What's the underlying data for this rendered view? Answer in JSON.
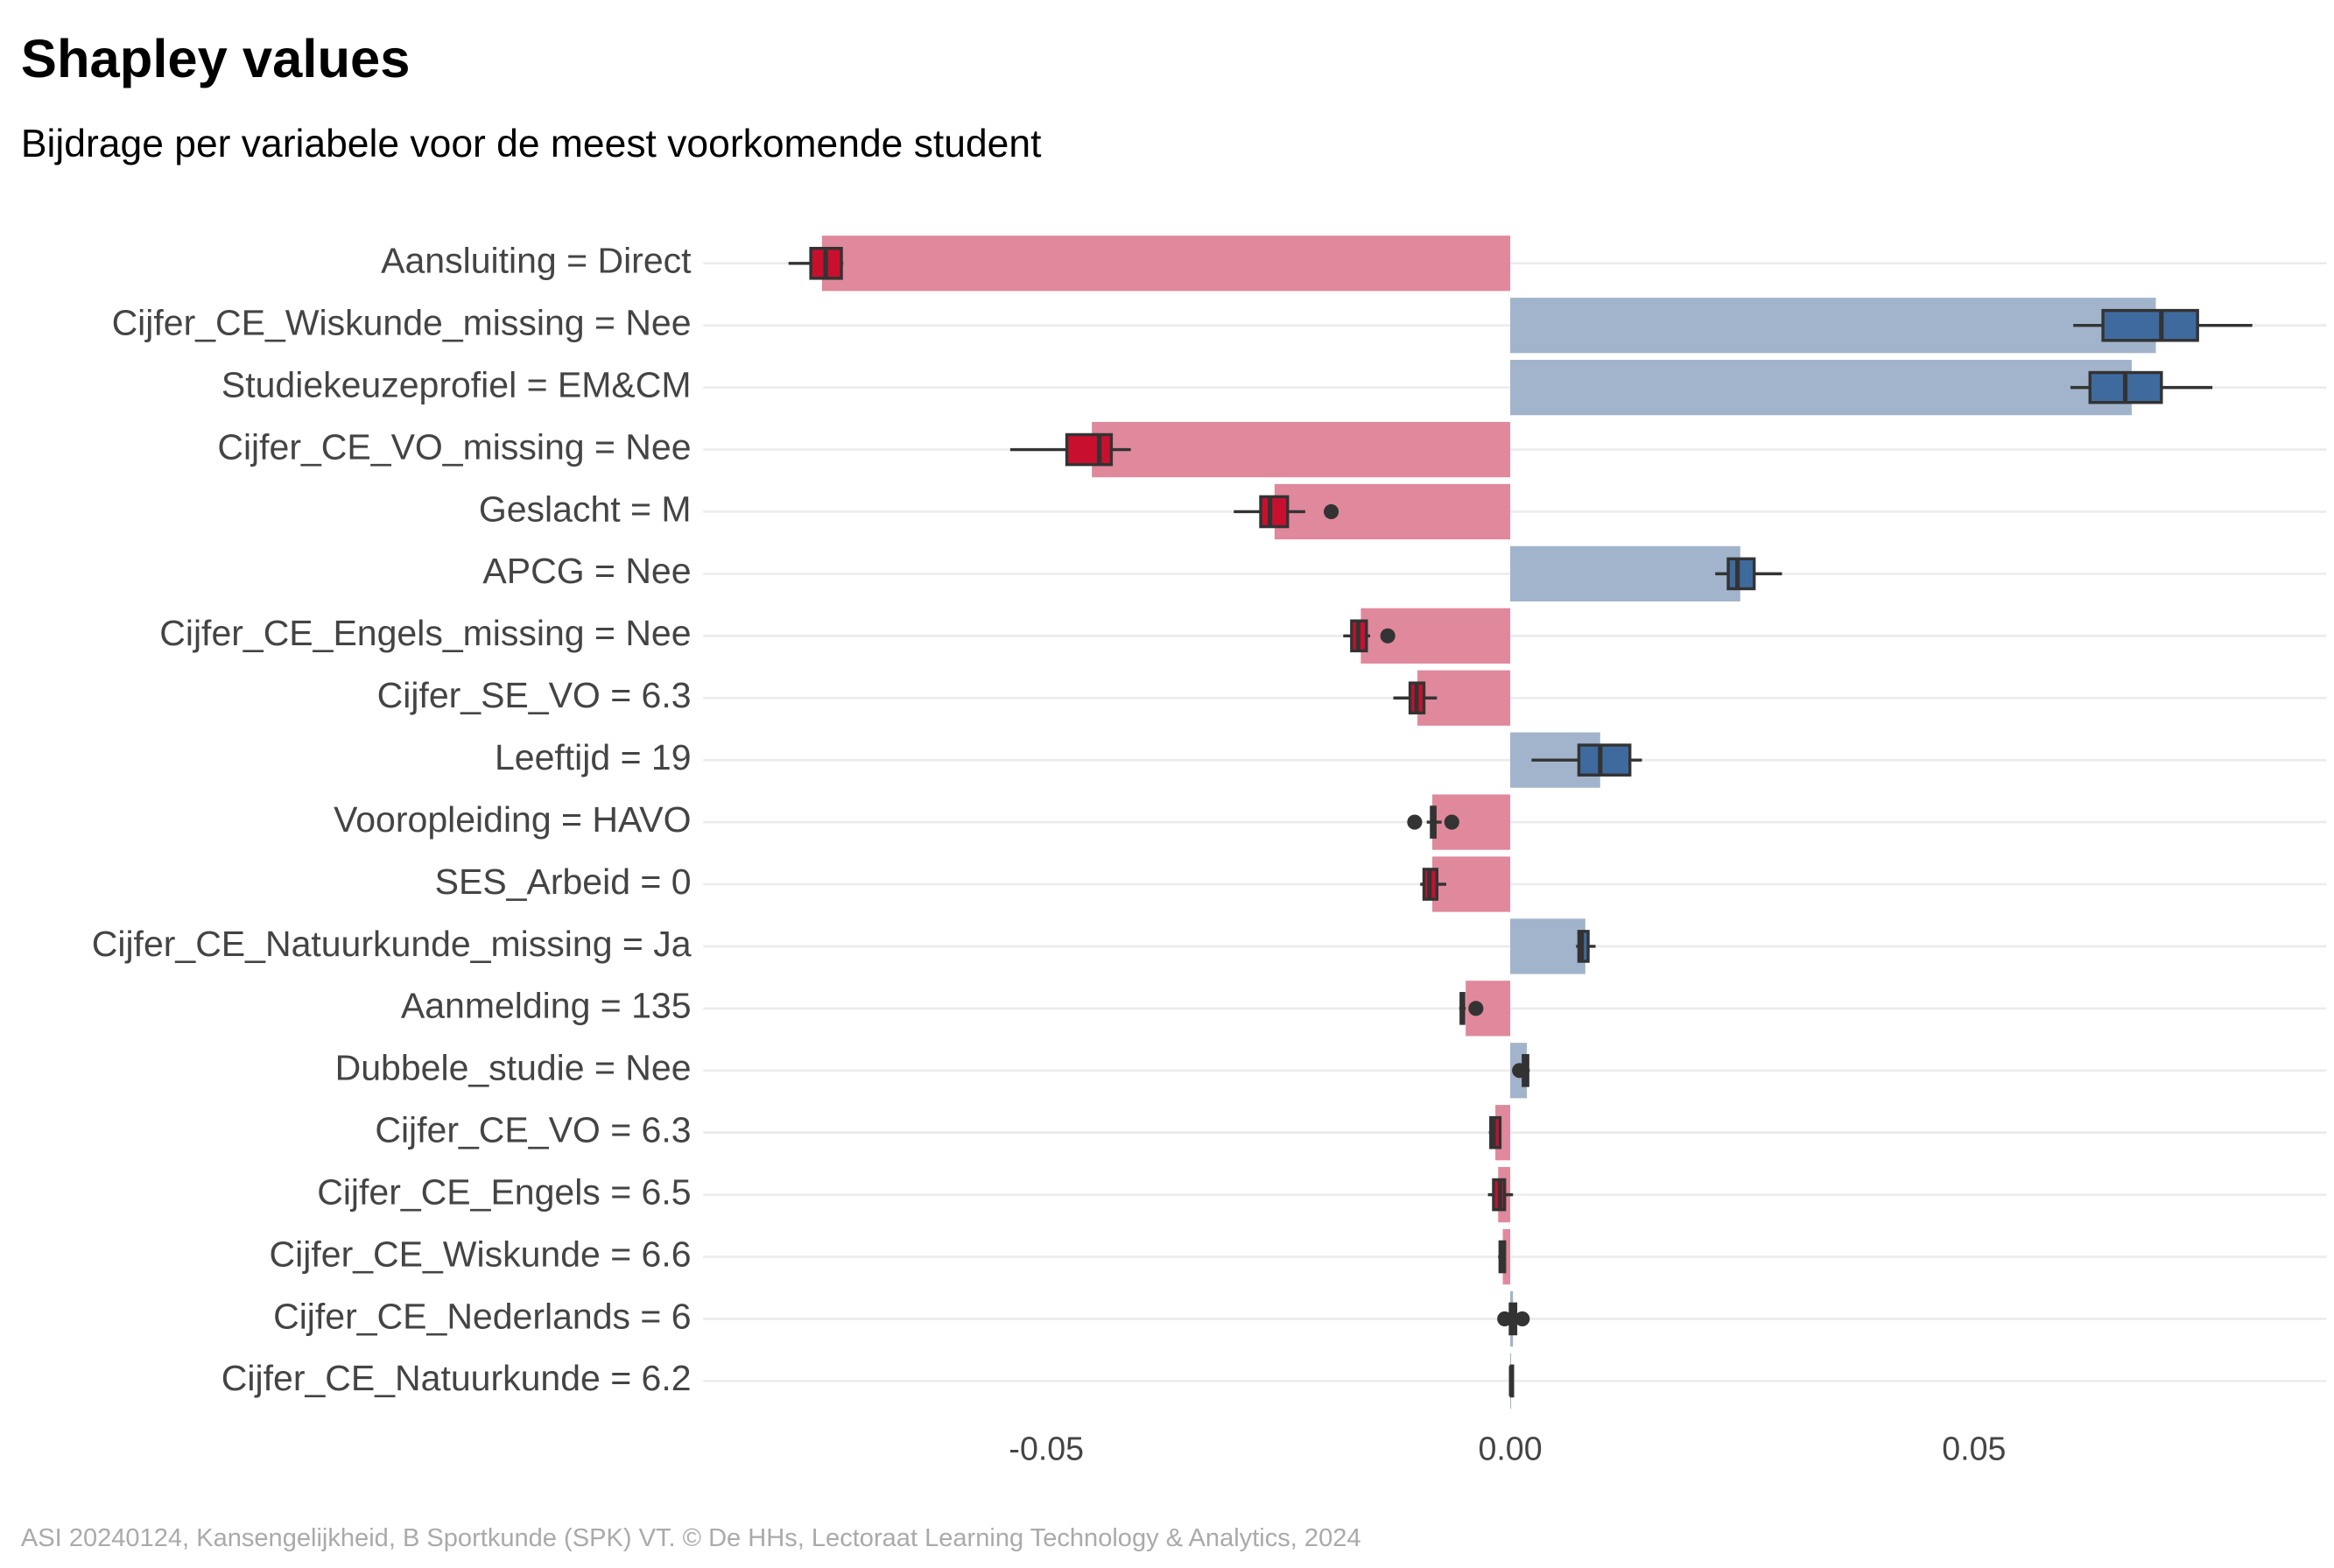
{
  "chart_data": {
    "type": "bar-box",
    "orientation": "horizontal",
    "title": "Shapley values",
    "subtitle": "Bijdrage per variabele voor de meest voorkomende student",
    "caption": "ASI 20240124, Kansengelijkheid, B Sportkunde (SPK) VT. © De HHs, Lectoraat Learning Technology & Analytics, 2024",
    "categories": [
      "Aansluiting = Direct",
      "Cijfer_CE_Wiskunde_missing = Nee",
      "Studiekeuzeprofiel = EM&CM",
      "Cijfer_CE_VO_missing = Nee",
      "Geslacht = M",
      "APCG = Nee",
      "Cijfer_CE_Engels_missing = Nee",
      "Cijfer_SE_VO = 6.3",
      "Leeftijd = 19",
      "Vooropleiding = HAVO",
      "SES_Arbeid = 0",
      "Cijfer_CE_Natuurkunde_missing = Ja",
      "Aanmelding = 135",
      "Dubbele_studie = Nee",
      "Cijfer_CE_VO = 6.3",
      "Cijfer_CE_Engels = 6.5",
      "Cijfer_CE_Wiskunde = 6.6",
      "Cijfer_CE_Nederlands = 6",
      "Cijfer_CE_Natuurkunde = 6.2"
    ],
    "values": [
      -0.0742,
      0.0696,
      0.067,
      -0.0451,
      -0.0254,
      0.0248,
      -0.0161,
      -0.01,
      0.0097,
      -0.0084,
      -0.0084,
      0.0081,
      -0.0048,
      0.0018,
      -0.0016,
      -0.0013,
      -0.0008,
      0.0003,
      0.0001
    ],
    "boxes": [
      {
        "whisker_low": -0.0778,
        "q1": -0.0754,
        "median": -0.0738,
        "q3": -0.0721,
        "whisker_high": -0.0719
      },
      {
        "whisker_low": 0.0607,
        "q1": 0.0639,
        "median": 0.0702,
        "q3": 0.0741,
        "whisker_high": 0.08
      },
      {
        "whisker_low": 0.0604,
        "q1": 0.0625,
        "median": 0.0663,
        "q3": 0.0702,
        "whisker_high": 0.0757
      },
      {
        "whisker_low": -0.0539,
        "q1": -0.0478,
        "median": -0.0443,
        "q3": -0.043,
        "whisker_high": -0.0409
      },
      {
        "whisker_low": -0.0298,
        "q1": -0.0269,
        "median": -0.0259,
        "q3": -0.024,
        "whisker_high": -0.0221,
        "outliers": [
          -0.0193
        ]
      },
      {
        "whisker_low": 0.0221,
        "q1": 0.0235,
        "median": 0.0245,
        "q3": 0.0263,
        "whisker_high": 0.0293
      },
      {
        "whisker_low": -0.018,
        "q1": -0.0171,
        "median": -0.0164,
        "q3": -0.0155,
        "whisker_high": -0.0151,
        "outliers": [
          -0.0132
        ]
      },
      {
        "whisker_low": -0.0126,
        "q1": -0.0108,
        "median": -0.0101,
        "q3": -0.0093,
        "whisker_high": -0.0079
      },
      {
        "whisker_low": 0.0023,
        "q1": 0.0074,
        "median": 0.0097,
        "q3": 0.0129,
        "whisker_high": 0.0142
      },
      {
        "whisker_low": -0.009,
        "q1": -0.0085,
        "median": -0.0084,
        "q3": -0.0081,
        "whisker_high": -0.0074,
        "outliers": [
          -0.0103,
          -0.0063
        ]
      },
      {
        "whisker_low": -0.0097,
        "q1": -0.0093,
        "median": -0.0087,
        "q3": -0.0079,
        "whisker_high": -0.0069
      },
      {
        "whisker_low": 0.0071,
        "q1": 0.0074,
        "median": 0.0077,
        "q3": 0.0084,
        "whisker_high": 0.0092
      },
      {
        "whisker_low": -0.0055,
        "q1": -0.0053,
        "median": -0.0052,
        "q3": -0.005,
        "whisker_high": -0.0048,
        "outliers": [
          -0.0037
        ]
      },
      {
        "whisker_low": 0.0013,
        "q1": 0.0014,
        "median": 0.0016,
        "q3": 0.0019,
        "whisker_high": 0.0021,
        "outliers": [
          0.001
        ]
      },
      {
        "whisker_low": -0.0023,
        "q1": -0.0021,
        "median": -0.0018,
        "q3": -0.0011,
        "whisker_high": -0.001
      },
      {
        "whisker_low": -0.0024,
        "q1": -0.0018,
        "median": -0.0011,
        "q3": -0.0006,
        "whisker_high": 0.0003
      },
      {
        "whisker_low": -0.0013,
        "q1": -0.0011,
        "median": -0.001,
        "q3": -0.0006,
        "whisker_high": -0.0005
      },
      {
        "whisker_low": -0.0006,
        "q1": 0,
        "median": 0.0003,
        "q3": 0.0006,
        "whisker_high": 0.0013,
        "outliers": [
          -0.0006,
          0.0013
        ]
      },
      {
        "whisker_low": 0,
        "q1": 0.0001,
        "median": 0.0001,
        "q3": 0.0002,
        "whisker_high": 0.0003
      }
    ],
    "negative_bar_color": "#e0889c",
    "positive_bar_color": "#a1b4cb",
    "negative_box_color": "#c8102e",
    "positive_box_color": "#3f6a9e",
    "xlim": [
      -0.087,
      0.088
    ],
    "xticks": [
      -0.05,
      {
        "value": 0,
        "label": "0.00"
      },
      0.05
    ],
    "grid": true
  }
}
